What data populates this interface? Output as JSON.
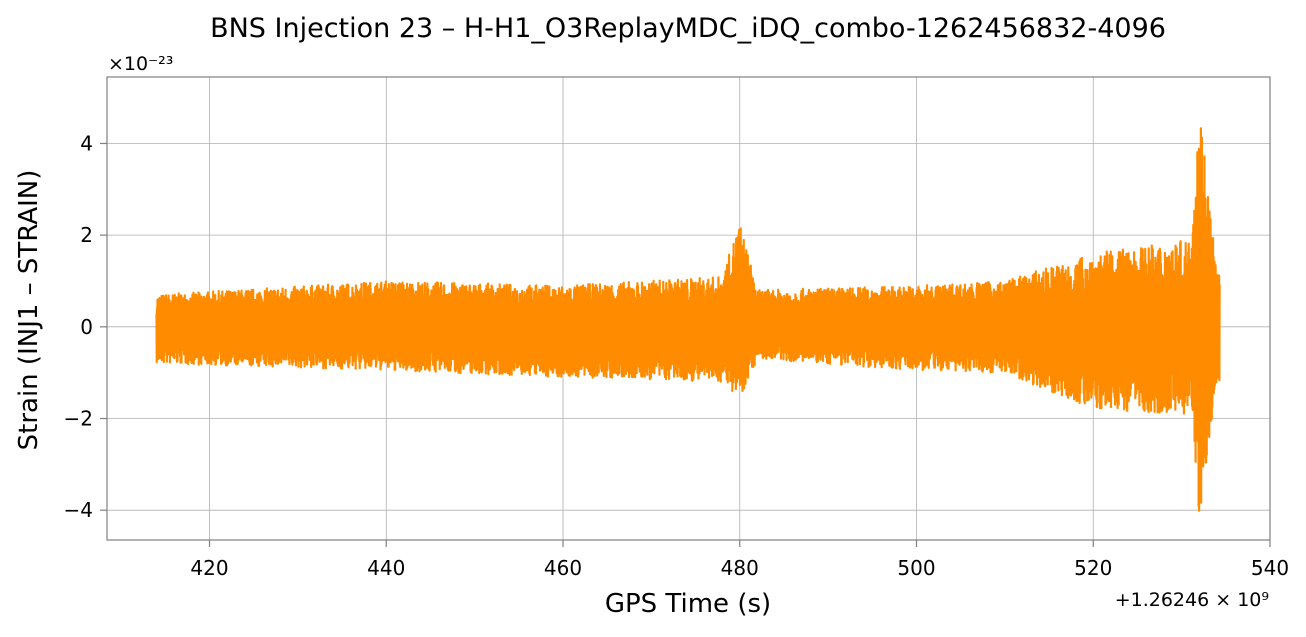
{
  "chart_data": {
    "type": "line",
    "title": "BNS Injection 23 – H-H1_O3ReplayMDC_iDQ_combo-1262456832-4096",
    "xlabel": "GPS Time (s)",
    "ylabel": "Strain (INJ1 – STRAIN)",
    "x_offset_label": "+1.26246 × 10⁹",
    "y_scale_label": "×10⁻²³",
    "xlim": [
      408.4,
      540
    ],
    "ylim": [
      -4.65,
      5.45
    ],
    "x_ticks": [
      420,
      440,
      460,
      480,
      500,
      520,
      540
    ],
    "x_tick_labels": [
      "420",
      "440",
      "460",
      "480",
      "500",
      "520",
      "540"
    ],
    "y_ticks": [
      -4,
      -2,
      0,
      2,
      4
    ],
    "y_tick_labels": [
      "−4",
      "−2",
      "0",
      "2",
      "4"
    ],
    "grid": true,
    "series": [
      {
        "color": "#ff8c00",
        "t_start": 414.0,
        "t_end": 534.3,
        "envelope_description_points": [
          {
            "t": 414,
            "upper": 0.7,
            "lower": -0.8
          },
          {
            "t": 440,
            "upper": 1.0,
            "lower": -0.95
          },
          {
            "t": 460,
            "upper": 0.9,
            "lower": -1.1
          },
          {
            "t": 478,
            "upper": 1.1,
            "lower": -1.2
          },
          {
            "t": 480,
            "upper": 2.3,
            "lower": -1.55
          },
          {
            "t": 482,
            "upper": 0.8,
            "lower": -0.7
          },
          {
            "t": 500,
            "upper": 0.9,
            "lower": -0.95
          },
          {
            "t": 510,
            "upper": 1.0,
            "lower": -1.0
          },
          {
            "t": 520,
            "upper": 1.6,
            "lower": -1.8
          },
          {
            "t": 531,
            "upper": 1.9,
            "lower": -1.9
          },
          {
            "t": 532,
            "upper": 5.0,
            "lower": -4.2
          },
          {
            "t": 534,
            "upper": 1.2,
            "lower": -1.2
          }
        ]
      }
    ]
  }
}
